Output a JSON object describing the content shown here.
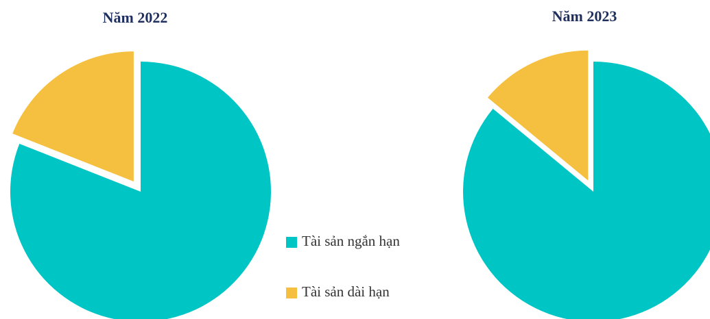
{
  "legend": [
    "Tài sản ngắn hạn",
    "Tài sản dài hạn"
  ],
  "chart_data": [
    {
      "type": "pie",
      "title": "Năm 2022",
      "values": [
        81,
        19
      ],
      "colors": [
        "#00c5c5",
        "#f5c040"
      ],
      "explode": [
        0,
        18
      ]
    },
    {
      "type": "pie",
      "title": "Năm 2023",
      "values": [
        86,
        14
      ],
      "colors": [
        "#00c5c5",
        "#f5c040"
      ],
      "explode": [
        0,
        18
      ]
    }
  ]
}
